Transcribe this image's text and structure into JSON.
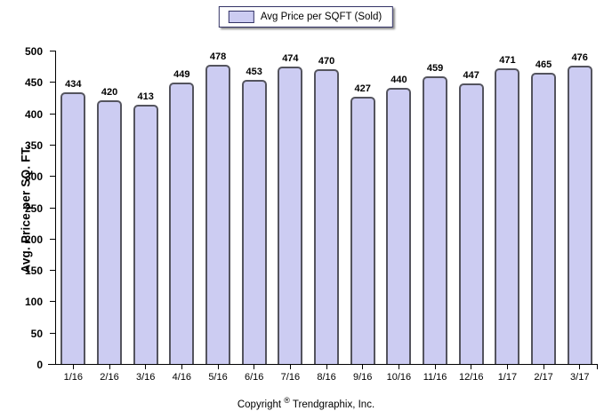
{
  "legend": {
    "label": "Avg Price per SQFT (Sold)"
  },
  "footer": {
    "copyright_prefix": "Copyright ",
    "copyright_symbol": "®",
    "copyright_suffix": " Trendgraphix, Inc."
  },
  "chart_data": {
    "type": "bar",
    "title": "",
    "categories": [
      "1/16",
      "2/16",
      "3/16",
      "4/16",
      "5/16",
      "6/16",
      "7/16",
      "8/16",
      "9/16",
      "10/16",
      "11/16",
      "12/16",
      "1/17",
      "2/17",
      "3/17"
    ],
    "values": [
      434,
      420,
      413,
      449,
      478,
      453,
      474,
      470,
      427,
      440,
      459,
      447,
      471,
      465,
      476
    ],
    "series_name": "Avg Price per SQFT (Sold)",
    "xlabel": "",
    "ylabel": "Avg. Price per SQ. FT.",
    "ylim": [
      0,
      500
    ],
    "ytick_step": 50,
    "grid": false,
    "legend_position": "top-center",
    "value_labels": true,
    "colors": {
      "bar_fill": "#ccccf2",
      "bar_border": "#54545e",
      "legend_border": "#333366",
      "axis": "#000000",
      "text": "#000000"
    }
  }
}
